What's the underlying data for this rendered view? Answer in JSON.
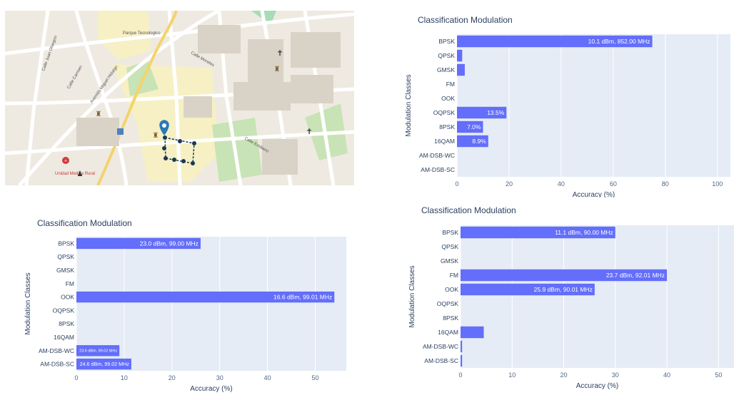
{
  "map": {
    "labels": [
      "Parque Tecnologico",
      "Unidad Medica Rural",
      "Calle Carmen",
      "Calle Juan Olvegon",
      "Calle Emiliano",
      "Avenida Miguel Hidalgo",
      "Calle Morelos"
    ],
    "colors": {
      "land": "#eeeae2",
      "road": "#ffffff",
      "park": "#c8e3b5",
      "campus": "#f6f0c4",
      "marker": "#2c79b4",
      "route": "#163a55",
      "hospital": "#d23c3c"
    },
    "icons": [
      "location-pin-icon",
      "cross-icon",
      "hospital-icon",
      "bus-stop-icon",
      "statue-icon"
    ]
  },
  "charts": [
    {
      "id": "chart-top-right",
      "chart_data": {
        "type": "bar",
        "orientation": "horizontal",
        "title": "Classification Modulation",
        "xlabel": "Accuracy (%)",
        "ylabel": "Modulation Classes",
        "categories": [
          "BPSK",
          "QPSK",
          "GMSK",
          "FM",
          "OOK",
          "OQPSK",
          "8PSK",
          "16QAM",
          "AM-DSB-WC",
          "AM-DSB-SC"
        ],
        "values": [
          75,
          2,
          3,
          0,
          0,
          19,
          10,
          12,
          0,
          0
        ],
        "bar_labels": [
          "10.1 dBm, 852.00 MHz",
          "",
          "",
          "",
          "",
          "13.5%",
          "7.0%",
          "8.9%",
          "",
          ""
        ],
        "xlim": [
          0,
          105
        ],
        "xticks": [
          0,
          20,
          40,
          60,
          80,
          100
        ],
        "grid": true,
        "colors": {
          "bar": "#636efa",
          "plot_bg": "#e5ecf6"
        }
      }
    },
    {
      "id": "chart-bottom-left",
      "chart_data": {
        "type": "bar",
        "orientation": "horizontal",
        "title": "Classification Modulation",
        "xlabel": "Accuracy (%)",
        "ylabel": "Modulation Classes",
        "categories": [
          "BPSK",
          "QPSK",
          "GMSK",
          "FM",
          "OOK",
          "OQPSK",
          "8PSK",
          "16QAM",
          "AM-DSB-WC",
          "AM-DSB-SC"
        ],
        "values": [
          26,
          0,
          0,
          0,
          54,
          0,
          0,
          0,
          9,
          11.5
        ],
        "bar_labels": [
          "23.0 dBm, 99.00 MHz",
          "",
          "",
          "",
          "16.6 dBm, 99.01 MHz",
          "",
          "",
          "",
          "23.6 dBm, 99.02 MHz",
          "24.6 dBm, 99.02 MHz"
        ],
        "xlim": [
          0,
          56.5
        ],
        "xticks": [
          0,
          10,
          20,
          30,
          40,
          50
        ],
        "grid": true,
        "colors": {
          "bar": "#636efa",
          "plot_bg": "#e5ecf6"
        }
      }
    },
    {
      "id": "chart-bottom-right",
      "chart_data": {
        "type": "bar",
        "orientation": "horizontal",
        "title": "Classification Modulation",
        "xlabel": "Accuracy (%)",
        "ylabel": "Modulation Classes",
        "categories": [
          "BPSK",
          "QPSK",
          "GMSK",
          "FM",
          "OOK",
          "OQPSK",
          "8PSK",
          "16QAM",
          "AM-DSB-WC",
          "AM-DSB-SC"
        ],
        "values": [
          30,
          0,
          0,
          40,
          26,
          0,
          0,
          4.5,
          0.3,
          0.3
        ],
        "bar_labels": [
          "11.1 dBm, 90.00 MHz",
          "",
          "",
          "23.7 dBm, 92.01 MHz",
          "25.9 dBm, 90.01 MHz",
          "",
          "",
          "",
          "",
          ""
        ],
        "xlim": [
          0,
          53
        ],
        "xticks": [
          0,
          10,
          20,
          30,
          40,
          50
        ],
        "grid": true,
        "colors": {
          "bar": "#636efa",
          "plot_bg": "#e5ecf6"
        }
      }
    }
  ]
}
